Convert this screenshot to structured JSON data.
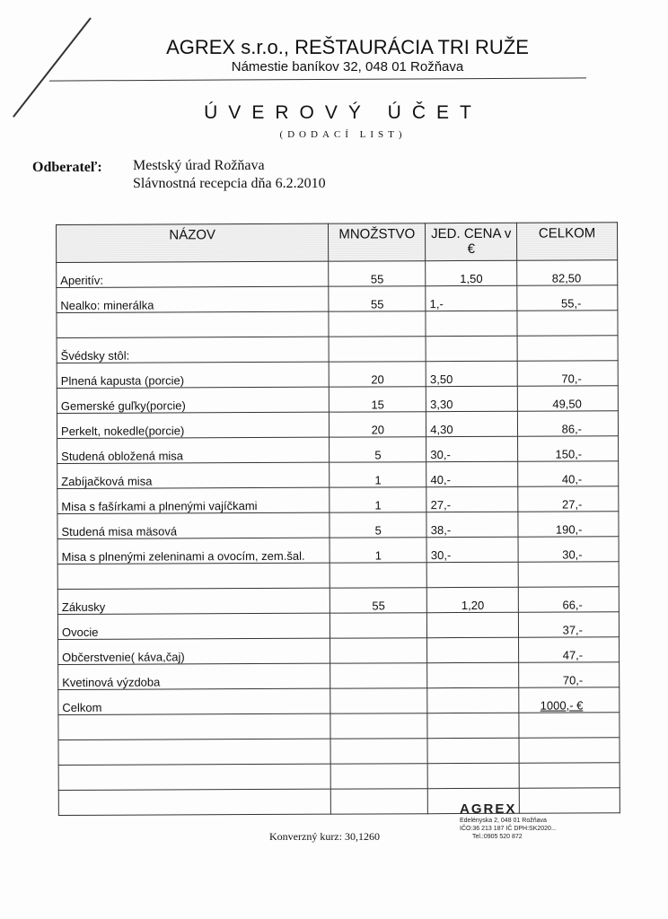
{
  "header": {
    "company": "AGREX s.r.o., REŠTAURÁCIA TRI RUŽE",
    "address": "Námestie baníkov 32, 048 01  Rožňava",
    "title": "ÚVEROVÝ ÚČET",
    "subtitle": "(DODACÍ LIST)"
  },
  "customer": {
    "label": "Odberateľ:",
    "name": "Mestský úrad Rožňava",
    "event": "Slávnostná recepcia dňa 6.2.2010"
  },
  "table": {
    "headers": [
      "NÁZOV",
      "MNOŽSTVO",
      "JED. CENA v €",
      "CELKOM"
    ],
    "rows": [
      [
        "Aperitív:",
        "55",
        "1,50",
        "82,50"
      ],
      [
        "Nealko: minerálka",
        "55",
        "1,-",
        "55,-"
      ],
      [
        "",
        "",
        "",
        ""
      ],
      [
        "Švédsky stôl:",
        "",
        "",
        ""
      ],
      [
        "Plnená kapusta (porcie)",
        "20",
        "3,50",
        "70,-"
      ],
      [
        "Gemerské guľky(porcie)",
        "15",
        "3,30",
        "49,50"
      ],
      [
        "Perkelt, nokedle(porcie)",
        "20",
        "4,30",
        "86,-"
      ],
      [
        "Studená obložená misa",
        "5",
        "30,-",
        "150,-"
      ],
      [
        "Zabíjačková misa",
        "1",
        "40,-",
        "40,-"
      ],
      [
        "Misa s fašírkami a plnenými vajíčkami",
        "1",
        "27,-",
        "27,-"
      ],
      [
        "Studená misa mäsová",
        "5",
        "38,-",
        "190,-"
      ],
      [
        "Misa s plnenými zeleninami a ovocím, zem.šal.",
        "1",
        "30,-",
        "30,-"
      ],
      [
        "",
        "",
        "",
        ""
      ],
      [
        "Zákusky",
        "55",
        "1,20",
        "66,-"
      ],
      [
        "Ovocie",
        "",
        "",
        "37,-"
      ],
      [
        "Občerstvenie( káva,čaj)",
        "",
        "",
        "47,-"
      ],
      [
        "Kvetinová výzdoba",
        "",
        "",
        "70,-"
      ],
      [
        "Celkom",
        "",
        "",
        "1000,-  €"
      ],
      [
        "",
        "",
        "",
        ""
      ],
      [
        "",
        "",
        "",
        ""
      ],
      [
        "",
        "",
        "",
        ""
      ],
      [
        "",
        "",
        "",
        ""
      ]
    ]
  },
  "footer": {
    "rate": "Konverzný  kurz: 30,1260"
  },
  "stamp": {
    "name": "AGREX",
    "line1": "Edelényska 2, 048 01 Rožňava",
    "line2": "IČO:36 213 187 IČ DPH:SK2020...",
    "line3": "Tel.:0905 520 872"
  }
}
